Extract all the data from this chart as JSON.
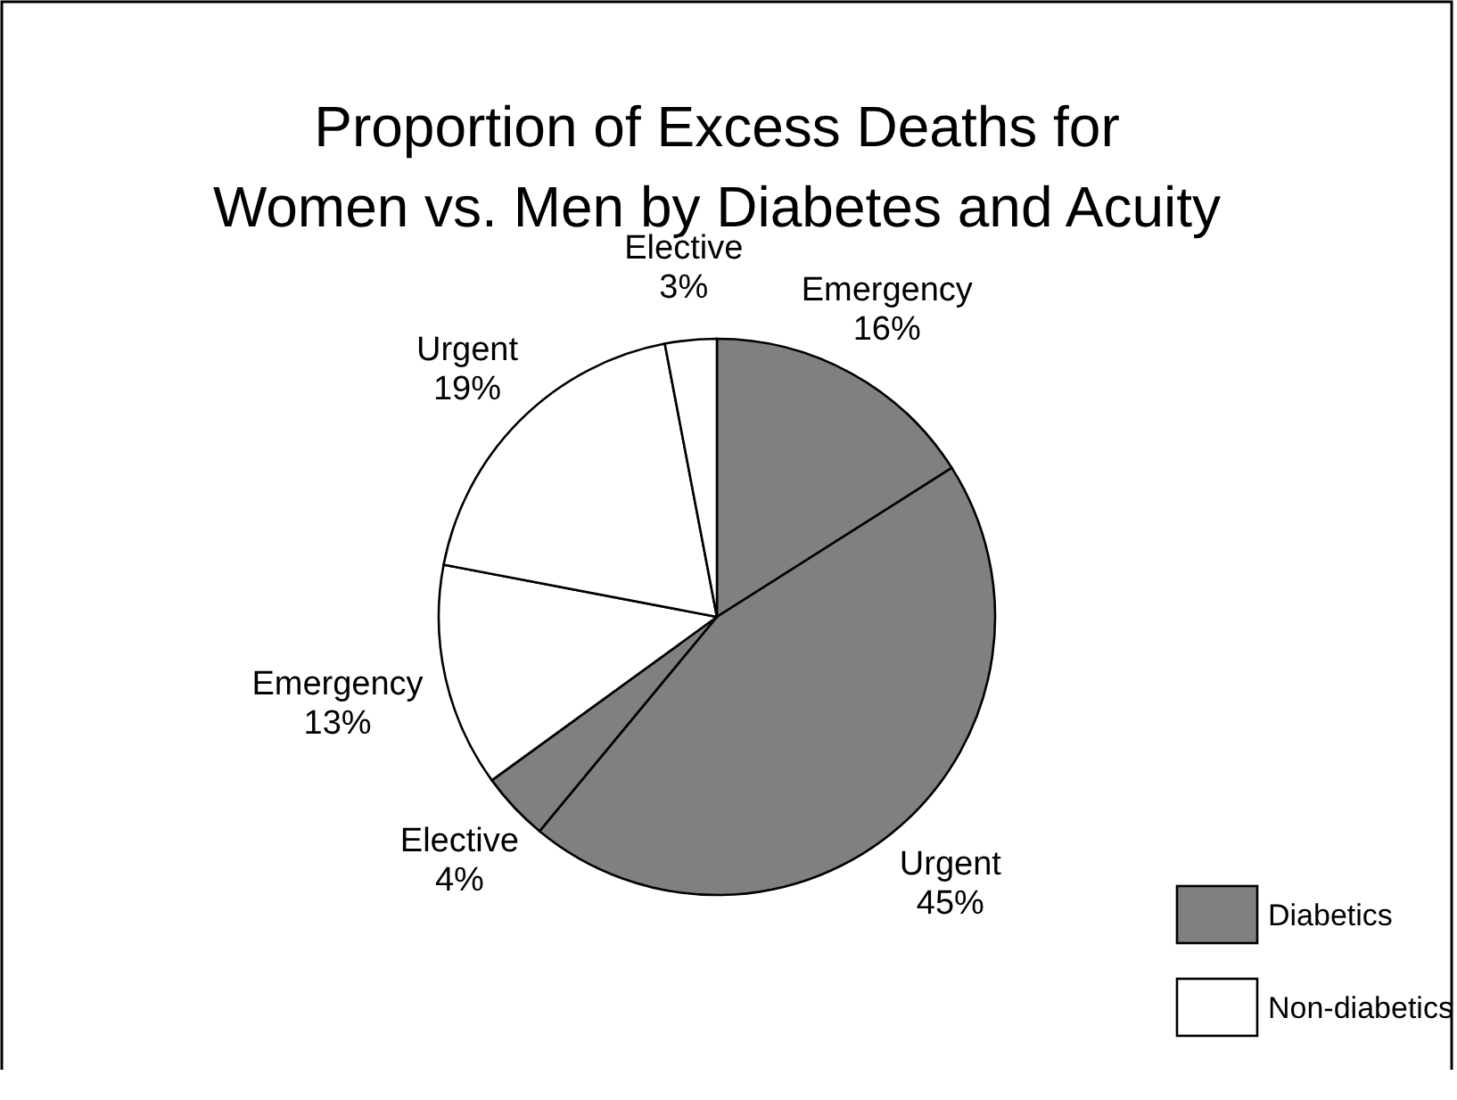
{
  "chart_data": {
    "type": "pie",
    "title": "Proportion of Excess Deaths for Women vs. Men by Diabetes and Acuity",
    "categories": [
      "Emergency",
      "Urgent",
      "Elective",
      "Emergency",
      "Urgent",
      "Elective"
    ],
    "values": [
      16,
      45,
      4,
      13,
      19,
      3
    ],
    "colors": [
      "#808080",
      "#808080",
      "#808080",
      "#ffffff",
      "#ffffff",
      "#ffffff"
    ],
    "annotations": [
      "Diabetics",
      "Non-diabetics"
    ],
    "value_labels": [
      "16%",
      "45%",
      "4%",
      "13%",
      "19%",
      "3%"
    ]
  }
}
